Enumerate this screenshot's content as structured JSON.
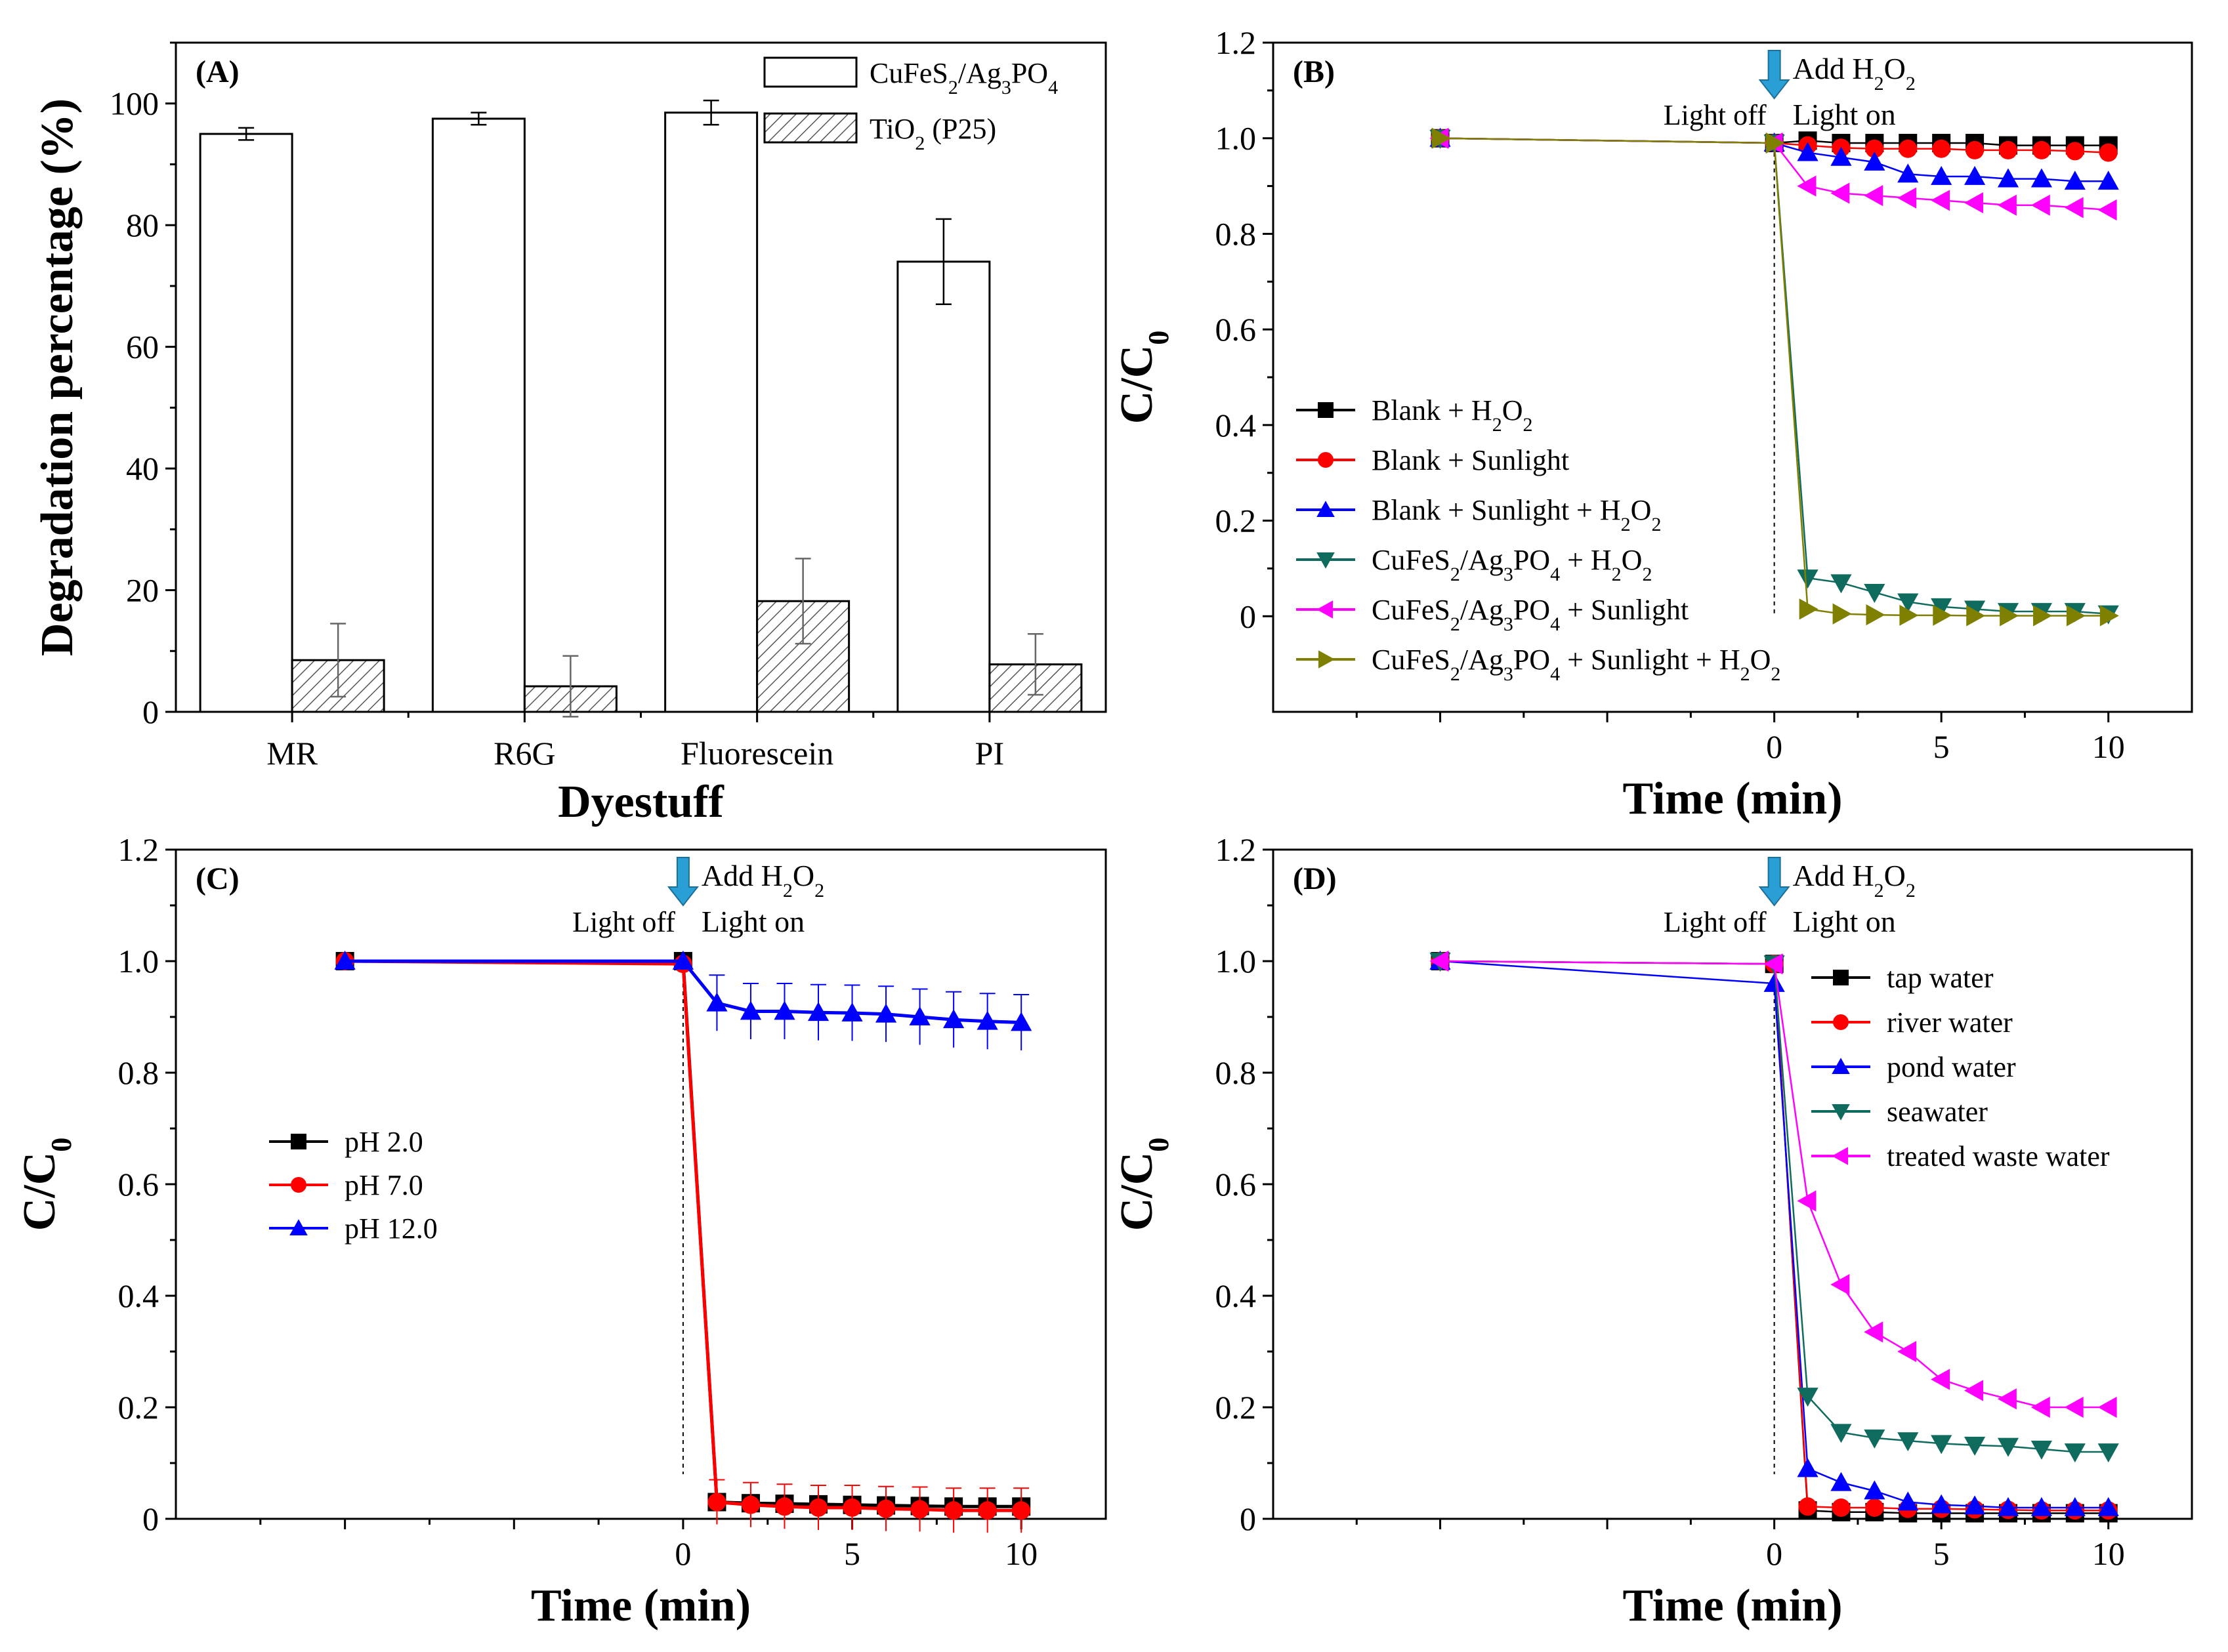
{
  "chart_data": [
    {
      "panel": "(A)",
      "type": "bar",
      "xlabel": "Dyestuff",
      "ylabel": "Degradation percentage (%)",
      "ylim": [
        0,
        110
      ],
      "yticks": [
        "0",
        "20",
        "40",
        "60",
        "80",
        "100"
      ],
      "categories": [
        "MR",
        "R6G",
        "Fluorescein",
        "PI"
      ],
      "series": [
        {
          "name": "CuFeS2/Ag3PO4",
          "legend": [
            "CuFeS",
            "2",
            "/Ag",
            "3",
            "PO",
            "4"
          ],
          "fill": "open",
          "values": [
            95,
            97.5,
            98.5,
            74
          ],
          "errors": [
            1,
            1,
            2,
            7
          ]
        },
        {
          "name": "TiO2 (P25)",
          "legend": [
            "TiO",
            "2",
            " (P25)"
          ],
          "fill": "hatched",
          "values": [
            8.5,
            4.2,
            18.2,
            7.8
          ],
          "errors": [
            6,
            5,
            7,
            5
          ]
        }
      ]
    },
    {
      "panel": "(B)",
      "type": "line",
      "xlabel": "Time (min)",
      "ylabel": "C/C0",
      "ylim": [
        -0.2,
        1.2
      ],
      "yticks": [
        "0",
        "0.2",
        "0.4",
        "0.6",
        "0.8",
        "1.0",
        "1.2"
      ],
      "xticks": [
        "0",
        "5",
        "10"
      ],
      "annotations": {
        "add": [
          "Add H",
          "2",
          "O",
          "2"
        ],
        "light_off": "Light off",
        "light_on": "Light on"
      },
      "legend_position": "lower-left",
      "series": [
        {
          "name": "Blank + H2O2",
          "legend": [
            "Blank + H",
            "2",
            "O",
            "2"
          ],
          "color": "#000000",
          "marker": "square",
          "x": [
            -10,
            0,
            1,
            2,
            3,
            4,
            5,
            6,
            7,
            8,
            9,
            10
          ],
          "y": [
            1.0,
            0.99,
            0.995,
            0.99,
            0.99,
            0.99,
            0.99,
            0.99,
            0.985,
            0.985,
            0.985,
            0.985
          ]
        },
        {
          "name": "Blank + Sunlight",
          "legend": [
            "Blank + Sunlight"
          ],
          "color": "#ff0000",
          "marker": "circle",
          "x": [
            -10,
            0,
            1,
            2,
            3,
            4,
            5,
            6,
            7,
            8,
            9,
            10
          ],
          "y": [
            1.0,
            0.99,
            0.985,
            0.98,
            0.978,
            0.978,
            0.978,
            0.975,
            0.975,
            0.975,
            0.973,
            0.97
          ]
        },
        {
          "name": "Blank + Sunlight + H2O2",
          "legend": [
            "Blank + Sunlight + H",
            "2",
            "O",
            "2"
          ],
          "color": "#0000ff",
          "marker": "triangle-up",
          "x": [
            -10,
            0,
            1,
            2,
            3,
            4,
            5,
            6,
            7,
            8,
            9,
            10
          ],
          "y": [
            1.0,
            0.99,
            0.97,
            0.96,
            0.95,
            0.925,
            0.92,
            0.92,
            0.915,
            0.915,
            0.91,
            0.91
          ]
        },
        {
          "name": "CuFeS2/Ag3PO4 + H2O2",
          "legend": [
            "CuFeS",
            "2",
            "/Ag",
            "3",
            "PO",
            "4",
            " + H",
            "2",
            "O",
            "2"
          ],
          "color": "#0f6b5e",
          "marker": "triangle-down",
          "x": [
            -10,
            0,
            1,
            2,
            3,
            4,
            5,
            6,
            7,
            8,
            9,
            10
          ],
          "y": [
            1.0,
            0.99,
            0.08,
            0.07,
            0.05,
            0.03,
            0.02,
            0.015,
            0.01,
            0.01,
            0.01,
            0.005
          ]
        },
        {
          "name": "CuFeS2/Ag3PO4 + Sunlight",
          "legend": [
            "CuFeS",
            "2",
            "/Ag",
            "3",
            "PO",
            "4",
            " + Sunlight"
          ],
          "color": "#ff00ff",
          "marker": "triangle-left",
          "x": [
            -10,
            0,
            1,
            2,
            3,
            4,
            5,
            6,
            7,
            8,
            9,
            10
          ],
          "y": [
            1.0,
            0.99,
            0.9,
            0.885,
            0.88,
            0.875,
            0.87,
            0.865,
            0.86,
            0.86,
            0.855,
            0.85
          ]
        },
        {
          "name": "CuFeS2/Ag3PO4 + Sunlight + H2O2",
          "legend": [
            "CuFeS",
            "2",
            "/Ag",
            "3",
            "PO",
            "4",
            " + Sunlight + H",
            "2",
            "O",
            "2"
          ],
          "color": "#808000",
          "marker": "triangle-right",
          "x": [
            -10,
            0,
            1,
            2,
            3,
            4,
            5,
            6,
            7,
            8,
            9,
            10
          ],
          "y": [
            1.0,
            0.99,
            0.015,
            0.005,
            0.003,
            0.002,
            0.002,
            0.001,
            0.001,
            0.001,
            0.001,
            0.001
          ]
        }
      ]
    },
    {
      "panel": "(C)",
      "type": "line",
      "xlabel": "Time (min)",
      "ylabel": "C/C0",
      "ylim": [
        0,
        1.2
      ],
      "yticks": [
        "0",
        "0.2",
        "0.4",
        "0.6",
        "0.8",
        "1.0",
        "1.2"
      ],
      "xticks": [
        "0",
        "5",
        "10"
      ],
      "annotations": {
        "add": [
          "Add H",
          "2",
          "O",
          "2"
        ],
        "light_off": "Light off",
        "light_on": "Light on"
      },
      "legend_position": "middle-left",
      "series": [
        {
          "name": "pH 2.0",
          "legend": [
            "pH 2.0"
          ],
          "color": "#000000",
          "marker": "square",
          "x": [
            -10,
            0,
            1,
            2,
            3,
            4,
            5,
            6,
            7,
            8,
            9,
            10
          ],
          "y": [
            1.0,
            1.0,
            0.03,
            0.028,
            0.027,
            0.026,
            0.025,
            0.024,
            0.023,
            0.022,
            0.022,
            0.022
          ],
          "err": 0.01
        },
        {
          "name": "pH 7.0",
          "legend": [
            "pH 7.0"
          ],
          "color": "#ff0000",
          "marker": "circle",
          "x": [
            -10,
            0,
            1,
            2,
            3,
            4,
            5,
            6,
            7,
            8,
            9,
            10
          ],
          "y": [
            1.0,
            0.995,
            0.03,
            0.025,
            0.022,
            0.02,
            0.02,
            0.018,
            0.017,
            0.015,
            0.015,
            0.015
          ],
          "err": 0.04
        },
        {
          "name": "pH 12.0",
          "legend": [
            "pH 12.0"
          ],
          "color": "#0000ff",
          "marker": "triangle-up",
          "x": [
            -10,
            0,
            1,
            2,
            3,
            4,
            5,
            6,
            7,
            8,
            9,
            10
          ],
          "y": [
            1.0,
            1.0,
            0.925,
            0.91,
            0.91,
            0.908,
            0.907,
            0.905,
            0.9,
            0.895,
            0.892,
            0.89
          ],
          "err": 0.05
        }
      ]
    },
    {
      "panel": "(D)",
      "type": "line",
      "xlabel": "Time (min)",
      "ylabel": "C/C0",
      "ylim": [
        0,
        1.2
      ],
      "yticks": [
        "0",
        "0.2",
        "0.4",
        "0.6",
        "0.8",
        "1.0",
        "1.2"
      ],
      "xticks": [
        "0",
        "5",
        "10"
      ],
      "annotations": {
        "add": [
          "Add H",
          "2",
          "O",
          "2"
        ],
        "light_off": "Light off",
        "light_on": "Light on"
      },
      "legend_position": "top-right",
      "series": [
        {
          "name": "tap water",
          "legend": [
            "tap water"
          ],
          "color": "#000000",
          "marker": "square",
          "x": [
            -10,
            0,
            1,
            2,
            3,
            4,
            5,
            6,
            7,
            8,
            9,
            10
          ],
          "y": [
            1.0,
            0.995,
            0.015,
            0.012,
            0.012,
            0.01,
            0.01,
            0.01,
            0.01,
            0.01,
            0.01,
            0.01
          ]
        },
        {
          "name": "river water",
          "legend": [
            "river water"
          ],
          "color": "#ff0000",
          "marker": "circle",
          "x": [
            -10,
            0,
            1,
            2,
            3,
            4,
            5,
            6,
            7,
            8,
            9,
            10
          ],
          "y": [
            1.0,
            0.995,
            0.022,
            0.02,
            0.02,
            0.018,
            0.018,
            0.017,
            0.016,
            0.015,
            0.015,
            0.015
          ]
        },
        {
          "name": "pond water",
          "legend": [
            "pond water"
          ],
          "color": "#0000ff",
          "marker": "triangle-up",
          "x": [
            -10,
            0,
            1,
            2,
            3,
            4,
            5,
            6,
            7,
            8,
            9,
            10
          ],
          "y": [
            1.0,
            0.96,
            0.09,
            0.065,
            0.05,
            0.03,
            0.025,
            0.023,
            0.02,
            0.02,
            0.02,
            0.02
          ]
        },
        {
          "name": "seawater",
          "legend": [
            "seawater"
          ],
          "color": "#0f6b5e",
          "marker": "triangle-down",
          "x": [
            -10,
            0,
            1,
            2,
            3,
            4,
            5,
            6,
            7,
            8,
            9,
            10
          ],
          "y": [
            1.0,
            0.995,
            0.22,
            0.155,
            0.145,
            0.14,
            0.135,
            0.132,
            0.13,
            0.125,
            0.12,
            0.12
          ]
        },
        {
          "name": "treated waste water",
          "legend": [
            "treated waste water"
          ],
          "color": "#ff00ff",
          "marker": "triangle-left",
          "x": [
            -10,
            0,
            1,
            2,
            3,
            4,
            5,
            6,
            7,
            8,
            9,
            10
          ],
          "y": [
            1.0,
            0.995,
            0.57,
            0.42,
            0.335,
            0.3,
            0.25,
            0.23,
            0.215,
            0.2,
            0.2,
            0.2
          ]
        }
      ]
    }
  ]
}
